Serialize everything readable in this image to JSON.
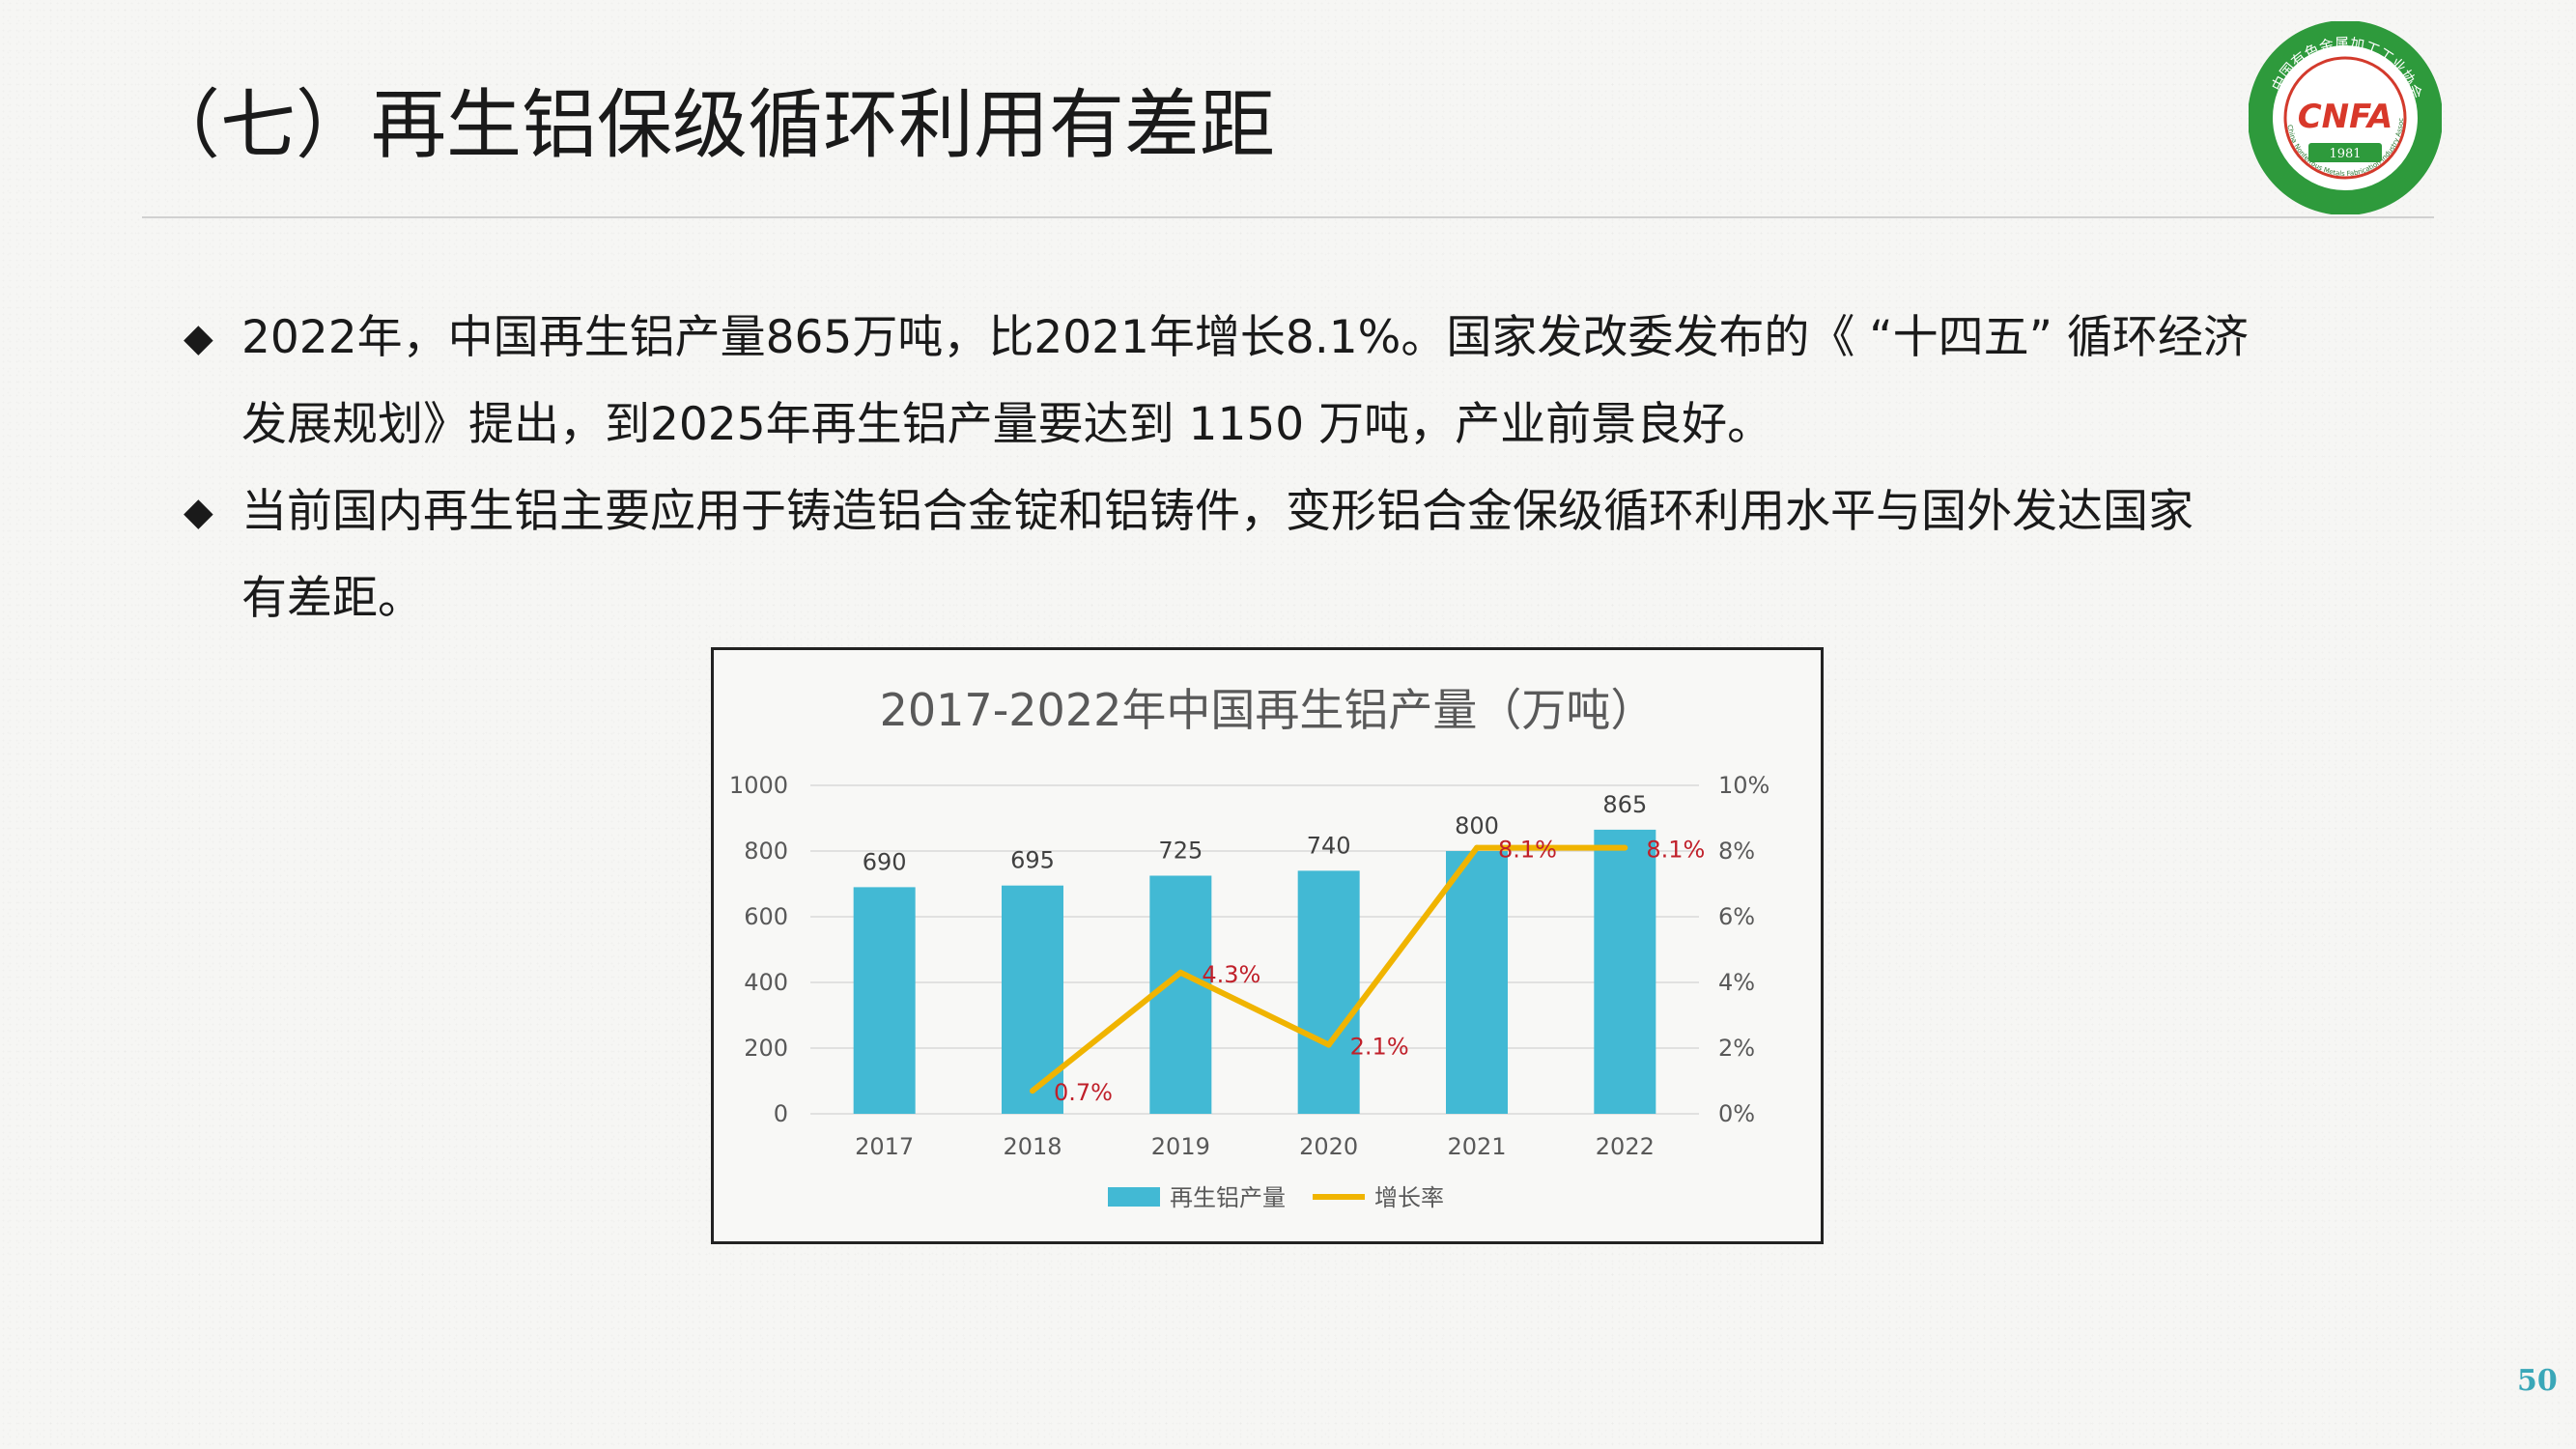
{
  "slide": {
    "title": "（七）再生铝保级循环利用有差距",
    "page_number": "50"
  },
  "logo": {
    "ring_text": "中国有色金属加工工业协会",
    "ring_text_en": "China Nonferrous Metals Fabrication Industry Association",
    "initials": "CNFA",
    "year": "1981",
    "colors": {
      "ring": "#2e9a3c",
      "inner_ring": "#d33a2c",
      "initials": "#d8382a",
      "banner": "#2e9a3c"
    }
  },
  "bullets": [
    {
      "marker": "◆",
      "lines": [
        "2022年，中国再生铝产量865万吨，比2021年增长8.1%。国家发改委发布的《 “十四五” 循环经济",
        "发展规划》提出，到2025年再生铝产量要达到 1150 万吨，产业前景良好。"
      ]
    },
    {
      "marker": "◆",
      "lines": [
        "当前国内再生铝主要应用于铸造铝合金锭和铝铸件，变形铝合金保级循环利用水平与国外发达国家",
        "有差距。"
      ]
    }
  ],
  "chart_data": {
    "type": "bar",
    "title": "2017-2022年中国再生铝产量（万吨）",
    "categories": [
      "2017",
      "2018",
      "2019",
      "2020",
      "2021",
      "2022"
    ],
    "series": [
      {
        "name": "再生铝产量",
        "type": "bar",
        "axis": "left",
        "color": "#42b9d4",
        "values": [
          690,
          695,
          725,
          740,
          800,
          865
        ],
        "labels": [
          "690",
          "695",
          "725",
          "740",
          "800",
          "865"
        ]
      },
      {
        "name": "增长率",
        "type": "line",
        "axis": "right",
        "color": "#f0b400",
        "values": [
          null,
          0.7,
          4.3,
          2.1,
          8.1,
          8.1
        ],
        "labels": [
          "",
          "0.7%",
          "4.3%",
          "2.1%",
          "8.1%",
          "8.1%"
        ],
        "label_color": "#c0202a"
      }
    ],
    "y_left": {
      "min": 0,
      "max": 1000,
      "ticks": [
        "0",
        "200",
        "400",
        "600",
        "800",
        "1000"
      ]
    },
    "y_right": {
      "min": 0,
      "max": 10,
      "ticks": [
        "0%",
        "2%",
        "4%",
        "6%",
        "8%",
        "10%"
      ]
    },
    "grid": true,
    "legend_position": "bottom"
  }
}
